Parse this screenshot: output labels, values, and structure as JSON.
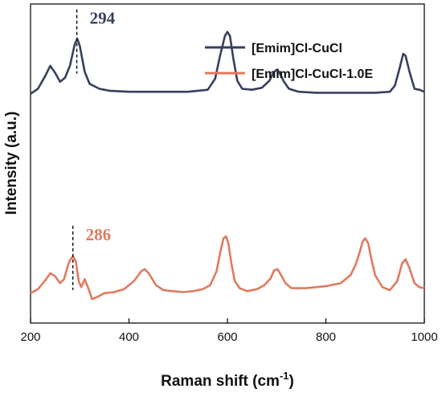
{
  "chart_data": {
    "type": "line",
    "xlabel": "Raman shift (cm",
    "xlabel_superscript": "-1",
    "xlabel_suffix": ")",
    "ylabel": "Intensity (a.u.)",
    "xlim": [
      200,
      1000
    ],
    "x_ticks": [
      "200",
      "400",
      "600",
      "800",
      "1000"
    ],
    "y_ticks_shown": false,
    "grid": false,
    "legend_position": "top-right",
    "series": [
      {
        "name": "[Emim]Cl-CuCl",
        "color": "#363f5e",
        "offset": 2.0,
        "x": [
          200,
          215,
          230,
          240,
          250,
          260,
          270,
          280,
          290,
          295,
          300,
          310,
          320,
          340,
          360,
          400,
          440,
          480,
          520,
          560,
          575,
          585,
          595,
          600,
          605,
          612,
          620,
          630,
          650,
          670,
          685,
          695,
          700,
          705,
          715,
          725,
          745,
          780,
          820,
          860,
          900,
          930,
          940,
          950,
          957,
          962,
          970,
          980,
          990,
          1000
        ],
        "y": [
          0.0,
          0.05,
          0.18,
          0.28,
          0.21,
          0.12,
          0.16,
          0.28,
          0.5,
          0.55,
          0.48,
          0.22,
          0.1,
          0.05,
          0.03,
          0.02,
          0.02,
          0.02,
          0.02,
          0.04,
          0.15,
          0.38,
          0.58,
          0.62,
          0.58,
          0.35,
          0.13,
          0.05,
          0.04,
          0.06,
          0.13,
          0.22,
          0.24,
          0.22,
          0.12,
          0.05,
          0.02,
          0.01,
          0.01,
          0.01,
          0.01,
          0.02,
          0.08,
          0.26,
          0.4,
          0.38,
          0.22,
          0.05,
          0.04,
          0.02
        ]
      },
      {
        "name": "[Emim]Cl-CuCl-1.0E",
        "color": "#e07a5f",
        "offset": 0.0,
        "x": [
          200,
          215,
          230,
          240,
          250,
          260,
          268,
          275,
          280,
          286,
          292,
          298,
          303,
          310,
          318,
          325,
          335,
          350,
          370,
          390,
          410,
          425,
          432,
          440,
          455,
          470,
          490,
          510,
          530,
          550,
          565,
          578,
          585,
          592,
          597,
          602,
          608,
          615,
          625,
          640,
          660,
          675,
          688,
          695,
          702,
          708,
          718,
          730,
          760,
          800,
          830,
          850,
          860,
          868,
          875,
          880,
          886,
          892,
          900,
          915,
          930,
          945,
          955,
          962,
          970,
          980,
          990,
          1000
        ],
        "y": [
          0.0,
          0.04,
          0.13,
          0.2,
          0.17,
          0.1,
          0.14,
          0.26,
          0.33,
          0.37,
          0.32,
          0.12,
          0.06,
          0.14,
          0.04,
          -0.06,
          -0.04,
          0.0,
          0.01,
          0.04,
          0.12,
          0.22,
          0.24,
          0.2,
          0.08,
          0.03,
          0.02,
          0.01,
          0.02,
          0.04,
          0.08,
          0.22,
          0.4,
          0.55,
          0.57,
          0.5,
          0.3,
          0.12,
          0.05,
          0.02,
          0.04,
          0.08,
          0.15,
          0.23,
          0.24,
          0.19,
          0.1,
          0.05,
          0.05,
          0.07,
          0.1,
          0.18,
          0.28,
          0.4,
          0.52,
          0.55,
          0.5,
          0.35,
          0.18,
          0.06,
          0.03,
          0.12,
          0.3,
          0.34,
          0.25,
          0.1,
          0.06,
          0.05
        ]
      }
    ],
    "annotations": [
      {
        "text": "294",
        "x": 294,
        "series": 0,
        "color": "#363f5e"
      },
      {
        "text": "286",
        "x": 286,
        "series": 1,
        "color": "#e07a5f"
      }
    ]
  }
}
